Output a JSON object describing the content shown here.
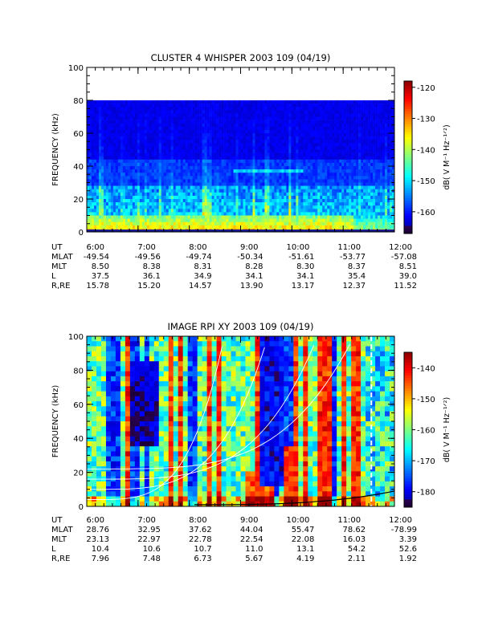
{
  "chart_data": [
    {
      "type": "heatmap",
      "title": "CLUSTER 4 WHISPER 2003 109 (04/19)",
      "ylabel": "FREQUENCY (kHz)",
      "ylim": [
        0,
        100
      ],
      "yticks": [
        "0",
        "20",
        "40",
        "60",
        "80",
        "100"
      ],
      "xlim": [
        "6:00",
        "12:00"
      ],
      "xticks": [
        "6:00",
        "7:00",
        "8:00",
        "9:00",
        "10:00",
        "11:00",
        "12:00"
      ],
      "colorbar": {
        "label": "dB( V M⁻¹ Hz⁻¹ᐟ²)",
        "range": [
          -167,
          -118
        ],
        "ticks": [
          "-120",
          "-130",
          "-140",
          "-150",
          "-160"
        ]
      },
      "data_max_frequency_khz": 80,
      "ephemeris": {
        "labels": [
          "UT",
          "MLAT",
          "MLT",
          "L",
          "R,RE"
        ],
        "UT": [
          "6:00",
          "7:00",
          "8:00",
          "9:00",
          "10:00",
          "11:00",
          "12:00"
        ],
        "MLAT": [
          "-49.54",
          "-49.56",
          "-49.74",
          "-50.34",
          "-51.61",
          "-53.77",
          "-57.08"
        ],
        "MLT": [
          "8.50",
          "8.38",
          "8.31",
          "8.28",
          "8.30",
          "8.37",
          "8.51"
        ],
        "L": [
          "37.5",
          "36.1",
          "34.9",
          "34.1",
          "34.1",
          "35.4",
          "39.0"
        ],
        "R,RE": [
          "15.78",
          "15.20",
          "14.57",
          "13.90",
          "13.17",
          "12.37",
          "11.52"
        ]
      }
    },
    {
      "type": "heatmap",
      "title": "IMAGE RPI XY 2003 109 (04/19)",
      "ylabel": "FREQUENCY (kHz)",
      "ylim": [
        0,
        100
      ],
      "yticks": [
        "0",
        "20",
        "40",
        "60",
        "80",
        "100"
      ],
      "xlim": [
        "6:00",
        "12:00"
      ],
      "xticks": [
        "6:00",
        "7:00",
        "8:00",
        "9:00",
        "10:00",
        "11:00",
        "12:00"
      ],
      "colorbar": {
        "label": "dB( V M⁻¹ Hz⁻¹ᐟ²)",
        "range": [
          -185,
          -135
        ],
        "ticks": [
          "-140",
          "-150",
          "-160",
          "-170",
          "-180"
        ]
      },
      "overlay_lines": "white",
      "ephemeris": {
        "labels": [
          "UT",
          "MLAT",
          "MLT",
          "L",
          "R,RE"
        ],
        "UT": [
          "6:00",
          "7:00",
          "8:00",
          "9:00",
          "10:00",
          "11:00",
          "12:00"
        ],
        "MLAT": [
          "28.76",
          "32.95",
          "37.62",
          "44.04",
          "55.47",
          "78.62",
          "-78.99"
        ],
        "MLT": [
          "23.13",
          "22.97",
          "22.78",
          "22.54",
          "22.08",
          "16.03",
          "3.39"
        ],
        "L": [
          "10.4",
          "10.6",
          "10.7",
          "11.0",
          "13.1",
          "54.2",
          "52.6"
        ],
        "R,RE": [
          "7.96",
          "7.48",
          "6.73",
          "5.67",
          "4.19",
          "2.11",
          "1.92"
        ]
      }
    }
  ]
}
